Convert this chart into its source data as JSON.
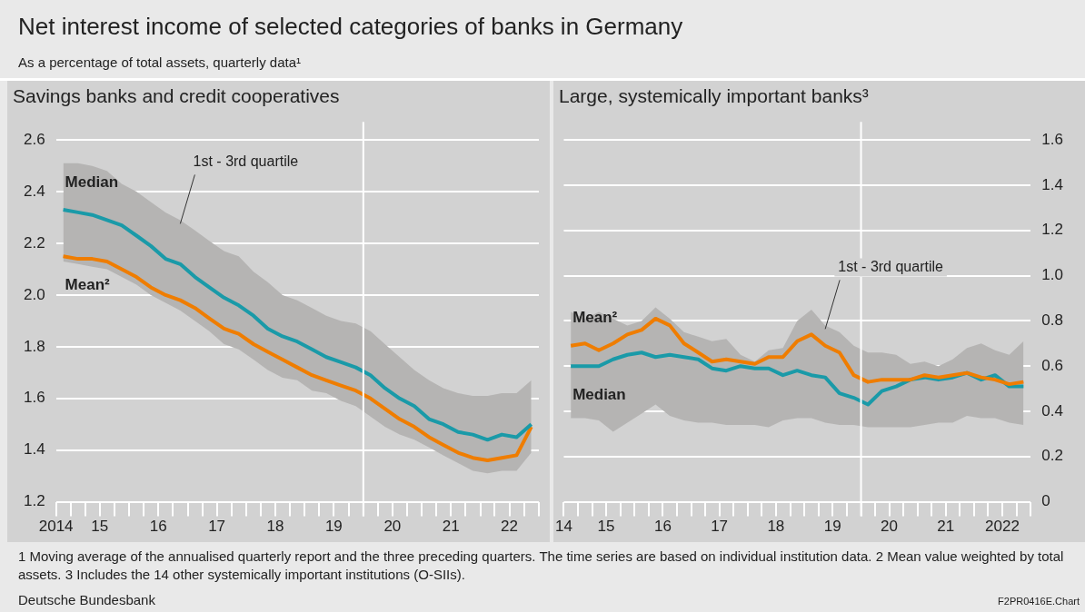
{
  "chart_data": [
    {
      "type": "other",
      "title": "Net interest income of selected categories of banks in Germany",
      "subtitle": "As a percentage of total assets, quarterly data¹",
      "annotations": [
        "1 Moving average of the annualised quarterly report and the three preceding quarters. The time series are based on individual institution data.",
        "2 Mean value weighted by total assets.",
        "3 Includes the 14 other systemically important institutions (O-SIIs).",
        "Deutsche Bundesbank",
        "F2PR0416E.Chart"
      ]
    },
    {
      "type": "line",
      "title": "Savings banks and credit cooperatives",
      "x": [
        "2014-11-15",
        "2015-02-15",
        "2015-05-15",
        "2015-08-15",
        "2015-11-15",
        "2016-02-15",
        "2016-05-15",
        "2016-08-15",
        "2016-11-15",
        "2017-02-15",
        "2017-05-15",
        "2017-08-15",
        "2017-11-15",
        "2018-02-15",
        "2018-05-15",
        "2018-08-15",
        "2018-11-15",
        "2019-02-15",
        "2019-05-15",
        "2019-08-15",
        "2019-11-15",
        "2020-02-15",
        "2020-05-15",
        "2020-08-15",
        "2020-11-15",
        "2021-02-15",
        "2021-05-15",
        "2021-08-15",
        "2021-11-15",
        "2022-02-15",
        "2022-05-15",
        "2022-08-15",
        "2022-11-15"
      ],
      "series": [
        {
          "name": "Median",
          "color": "#1a9aa8",
          "values": [
            2.33,
            2.32,
            2.31,
            2.29,
            2.27,
            2.23,
            2.19,
            2.14,
            2.12,
            2.07,
            2.03,
            1.99,
            1.96,
            1.92,
            1.87,
            1.84,
            1.82,
            1.79,
            1.76,
            1.74,
            1.72,
            1.69,
            1.64,
            1.6,
            1.57,
            1.52,
            1.5,
            1.47,
            1.46,
            1.44,
            1.46,
            1.45,
            1.5
          ],
          "lower": [
            2.13,
            2.12,
            2.11,
            2.1,
            2.07,
            2.04,
            2,
            1.97,
            1.94,
            1.9,
            1.86,
            1.81,
            1.79,
            1.75,
            1.71,
            1.68,
            1.67,
            1.63,
            1.62,
            1.59,
            1.57,
            1.53,
            1.49,
            1.46,
            1.44,
            1.41,
            1.38,
            1.35,
            1.32,
            1.31,
            1.32,
            1.32,
            1.39
          ],
          "upper": [
            2.51,
            2.51,
            2.5,
            2.48,
            2.43,
            2.4,
            2.36,
            2.32,
            2.29,
            2.25,
            2.21,
            2.17,
            2.15,
            2.09,
            2.05,
            2,
            1.98,
            1.95,
            1.92,
            1.9,
            1.89,
            1.86,
            1.81,
            1.76,
            1.71,
            1.67,
            1.64,
            1.62,
            1.61,
            1.61,
            1.62,
            1.62,
            1.67
          ]
        },
        {
          "name": "Mean²",
          "color": "#ef7d00",
          "values": [
            2.15,
            2.14,
            2.14,
            2.13,
            2.1,
            2.07,
            2.03,
            2,
            1.98,
            1.95,
            1.91,
            1.87,
            1.85,
            1.81,
            1.78,
            1.75,
            1.72,
            1.69,
            1.67,
            1.65,
            1.63,
            1.6,
            1.56,
            1.52,
            1.49,
            1.45,
            1.42,
            1.39,
            1.37,
            1.36,
            1.37,
            1.38,
            1.49
          ]
        }
      ],
      "xlim": [
        "2014-10-01",
        "2023-01-01"
      ],
      "xticks": [
        {
          "value": "2014-10-01",
          "label": "2014"
        },
        {
          "value": "2015-01-01",
          "label": null
        },
        {
          "value": "2015-04-01",
          "label": null
        },
        {
          "value": "2015-07-01",
          "label": "15"
        },
        {
          "value": "2015-10-01",
          "label": null
        },
        {
          "value": "2016-01-01",
          "label": null
        },
        {
          "value": "2016-04-01",
          "label": null
        },
        {
          "value": "2016-07-01",
          "label": "16"
        },
        {
          "value": "2016-10-01",
          "label": null
        },
        {
          "value": "2017-01-01",
          "label": null
        },
        {
          "value": "2017-04-01",
          "label": null
        },
        {
          "value": "2017-07-01",
          "label": "17"
        },
        {
          "value": "2017-10-01",
          "label": null
        },
        {
          "value": "2018-01-01",
          "label": null
        },
        {
          "value": "2018-04-01",
          "label": null
        },
        {
          "value": "2018-07-01",
          "label": "18"
        },
        {
          "value": "2018-10-01",
          "label": null
        },
        {
          "value": "2019-01-01",
          "label": null
        },
        {
          "value": "2019-04-01",
          "label": null
        },
        {
          "value": "2019-07-01",
          "label": "19"
        },
        {
          "value": "2019-10-01",
          "label": null
        },
        {
          "value": "2020-01-01",
          "label": null
        },
        {
          "value": "2020-04-01",
          "label": null
        },
        {
          "value": "2020-07-01",
          "label": "20"
        },
        {
          "value": "2020-10-01",
          "label": null
        },
        {
          "value": "2021-01-01",
          "label": null
        },
        {
          "value": "2021-04-01",
          "label": null
        },
        {
          "value": "2021-07-01",
          "label": "21"
        },
        {
          "value": "2021-10-01",
          "label": null
        },
        {
          "value": "2022-01-01",
          "label": null
        },
        {
          "value": "2022-04-01",
          "label": null
        },
        {
          "value": "2022-07-01",
          "label": "22"
        },
        {
          "value": "2022-10-01",
          "label": null
        },
        {
          "value": "2023-01-01",
          "label": null
        }
      ],
      "ylim": [
        1.2,
        2.6
      ],
      "yticks": [
        1.2,
        1.4,
        1.6,
        1.8,
        {
          "value": 2,
          "label": "2.0"
        },
        2.2,
        2.4,
        2.6
      ],
      "grid": "y",
      "ref_lines": [
        {
          "axis": "x",
          "value": "2020-01-01",
          "color": "#ffffff"
        }
      ],
      "annotations": [
        {
          "text": "1st - 3rd quartile",
          "x": "2016-11-15",
          "y": 2.29
        }
      ]
    },
    {
      "type": "line",
      "title": "Large, systemically important banks³",
      "x": [
        "2014-11-15",
        "2015-02-15",
        "2015-05-15",
        "2015-08-15",
        "2015-11-15",
        "2016-02-15",
        "2016-05-15",
        "2016-08-15",
        "2016-11-15",
        "2017-02-15",
        "2017-05-15",
        "2017-08-15",
        "2017-11-15",
        "2018-02-15",
        "2018-05-15",
        "2018-08-15",
        "2018-11-15",
        "2019-02-15",
        "2019-05-15",
        "2019-08-15",
        "2019-11-15",
        "2020-02-15",
        "2020-05-15",
        "2020-08-15",
        "2020-11-15",
        "2021-02-15",
        "2021-05-15",
        "2021-08-15",
        "2021-11-15",
        "2022-02-15",
        "2022-05-15",
        "2022-08-15",
        "2022-11-15"
      ],
      "series": [
        {
          "name": "Mean²",
          "color": "#ef7d00",
          "values": [
            0.69,
            0.7,
            0.67,
            0.7,
            0.74,
            0.76,
            0.81,
            0.78,
            0.7,
            0.66,
            0.62,
            0.63,
            0.62,
            0.61,
            0.64,
            0.64,
            0.71,
            0.74,
            0.69,
            0.66,
            0.56,
            0.53,
            0.54,
            0.54,
            0.54,
            0.56,
            0.55,
            0.56,
            0.57,
            0.55,
            0.54,
            0.52,
            0.53
          ]
        },
        {
          "name": "Median",
          "color": "#1a9aa8",
          "values": [
            0.6,
            0.6,
            0.6,
            0.63,
            0.65,
            0.66,
            0.64,
            0.65,
            0.64,
            0.63,
            0.59,
            0.58,
            0.6,
            0.59,
            0.59,
            0.56,
            0.58,
            0.56,
            0.55,
            0.48,
            0.46,
            0.43,
            0.49,
            0.51,
            0.54,
            0.55,
            0.54,
            0.55,
            0.57,
            0.54,
            0.56,
            0.51,
            0.51
          ],
          "lower": [
            0.37,
            0.37,
            0.36,
            0.31,
            0.35,
            0.39,
            0.43,
            0.38,
            0.36,
            0.35,
            0.35,
            0.34,
            0.34,
            0.34,
            0.33,
            0.36,
            0.37,
            0.37,
            0.35,
            0.34,
            0.34,
            0.33,
            0.33,
            0.33,
            0.33,
            0.34,
            0.35,
            0.35,
            0.38,
            0.37,
            0.37,
            0.35,
            0.34
          ],
          "upper": [
            0.84,
            0.81,
            0.84,
            0.81,
            0.78,
            0.8,
            0.86,
            0.81,
            0.75,
            0.73,
            0.71,
            0.72,
            0.65,
            0.62,
            0.67,
            0.68,
            0.8,
            0.85,
            0.78,
            0.75,
            0.69,
            0.66,
            0.66,
            0.65,
            0.61,
            0.62,
            0.6,
            0.63,
            0.68,
            0.7,
            0.67,
            0.65,
            0.71
          ]
        }
      ],
      "xlim": [
        "2014-10-01",
        "2023-01-01"
      ],
      "xticks": [
        {
          "value": "2014-10-01",
          "label": "14"
        },
        {
          "value": "2015-01-01",
          "label": null
        },
        {
          "value": "2015-04-01",
          "label": null
        },
        {
          "value": "2015-07-01",
          "label": "15"
        },
        {
          "value": "2015-10-01",
          "label": null
        },
        {
          "value": "2016-01-01",
          "label": null
        },
        {
          "value": "2016-04-01",
          "label": null
        },
        {
          "value": "2016-07-01",
          "label": "16"
        },
        {
          "value": "2016-10-01",
          "label": null
        },
        {
          "value": "2017-01-01",
          "label": null
        },
        {
          "value": "2017-04-01",
          "label": null
        },
        {
          "value": "2017-07-01",
          "label": "17"
        },
        {
          "value": "2017-10-01",
          "label": null
        },
        {
          "value": "2018-01-01",
          "label": null
        },
        {
          "value": "2018-04-01",
          "label": null
        },
        {
          "value": "2018-07-01",
          "label": "18"
        },
        {
          "value": "2018-10-01",
          "label": null
        },
        {
          "value": "2019-01-01",
          "label": null
        },
        {
          "value": "2019-04-01",
          "label": null
        },
        {
          "value": "2019-07-01",
          "label": "19"
        },
        {
          "value": "2019-10-01",
          "label": null
        },
        {
          "value": "2020-01-01",
          "label": null
        },
        {
          "value": "2020-04-01",
          "label": null
        },
        {
          "value": "2020-07-01",
          "label": "20"
        },
        {
          "value": "2020-10-01",
          "label": null
        },
        {
          "value": "2021-01-01",
          "label": null
        },
        {
          "value": "2021-04-01",
          "label": null
        },
        {
          "value": "2021-07-01",
          "label": "21"
        },
        {
          "value": "2021-10-01",
          "label": null
        },
        {
          "value": "2022-01-01",
          "label": null
        },
        {
          "value": "2022-04-01",
          "label": null
        },
        {
          "value": "2022-07-01",
          "label": "2022"
        },
        {
          "value": "2022-10-01",
          "label": null
        },
        {
          "value": "2023-01-01",
          "label": null
        }
      ],
      "ylim": [
        0,
        1.6
      ],
      "yticks": [
        0,
        0.2,
        0.4,
        0.6,
        0.8,
        {
          "value": 1,
          "label": "1.0"
        },
        1.2,
        1.4,
        1.6
      ],
      "grid": "y",
      "ref_lines": [
        {
          "axis": "x",
          "value": "2020-01-01",
          "color": "#ffffff"
        }
      ],
      "annotations": [
        {
          "text": "1st - 3rd quartile",
          "x": "2019-05-15",
          "y": 0.78
        }
      ]
    }
  ]
}
